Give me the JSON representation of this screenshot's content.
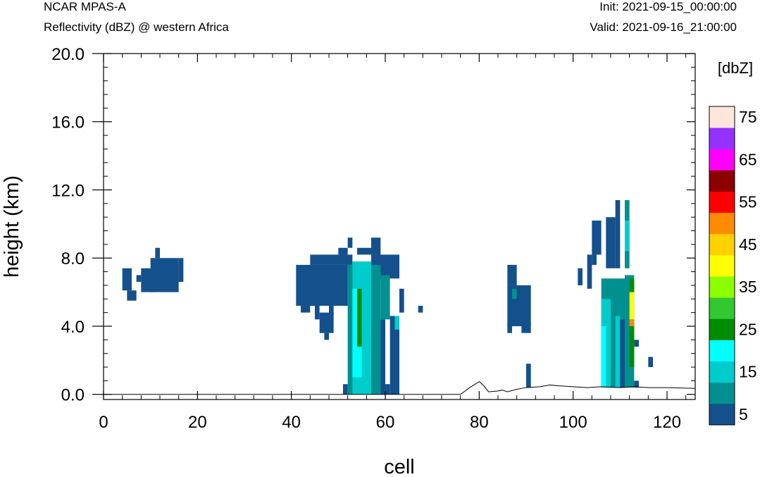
{
  "header": {
    "left_1": "NCAR MPAS-A",
    "left_2": "Reflectivity (dBZ) @ western Africa",
    "right_1": "Init: 2021-09-15_00:00:00",
    "right_2": "Valid: 2021-09-16_21:00:00"
  },
  "chart_data": {
    "type": "heatmap",
    "title": "Reflectivity (dBZ) @ western Africa",
    "xlabel": "cell",
    "ylabel": "height (km)",
    "xlim": [
      0,
      126
    ],
    "ylim": [
      -0.3,
      20
    ],
    "x_ticks": [
      "0",
      "20",
      "40",
      "60",
      "80",
      "100",
      "120"
    ],
    "y_ticks": [
      "0.0",
      "4.0",
      "8.0",
      "12.0",
      "16.0",
      "20.0"
    ],
    "colorbar": {
      "label": "[dbZ]",
      "tick_labels": [
        "5",
        "15",
        "25",
        "35",
        "45",
        "55",
        "65",
        "75"
      ],
      "levels": [
        5,
        10,
        15,
        20,
        25,
        30,
        35,
        40,
        45,
        50,
        55,
        60,
        65,
        70,
        75
      ],
      "colors": [
        "#14508c",
        "#009090",
        "#00cccc",
        "#00ffff",
        "#008c00",
        "#32c832",
        "#8cff00",
        "#ffff00",
        "#ffd200",
        "#ff8c00",
        "#ff0000",
        "#8c0000",
        "#ff00ff",
        "#9632ff",
        "#ffe6dc"
      ]
    },
    "terrain": [
      [
        0,
        0.0
      ],
      [
        76,
        0.0
      ],
      [
        78,
        0.4
      ],
      [
        80,
        0.75
      ],
      [
        81,
        0.5
      ],
      [
        82,
        0.15
      ],
      [
        84,
        0.2
      ],
      [
        85,
        0.25
      ],
      [
        86,
        0.15
      ],
      [
        88,
        0.3
      ],
      [
        90,
        0.4
      ],
      [
        93,
        0.45
      ],
      [
        95,
        0.55
      ],
      [
        97,
        0.5
      ],
      [
        100,
        0.45
      ],
      [
        103,
        0.4
      ],
      [
        106,
        0.45
      ],
      [
        110,
        0.4
      ],
      [
        113,
        0.45
      ],
      [
        116,
        0.4
      ],
      [
        120,
        0.4
      ],
      [
        126,
        0.35
      ]
    ],
    "cells": [
      {
        "x": [
          4,
          6
        ],
        "z": [
          6.1,
          7.4
        ],
        "dbz": 5
      },
      {
        "x": [
          5,
          7
        ],
        "z": [
          5.5,
          6.1
        ],
        "dbz": 5
      },
      {
        "x": [
          7,
          8
        ],
        "z": [
          6.6,
          7.0
        ],
        "dbz": 5
      },
      {
        "x": [
          8,
          11
        ],
        "z": [
          6.0,
          7.4
        ],
        "dbz": 5
      },
      {
        "x": [
          10,
          16
        ],
        "z": [
          6.0,
          8.0
        ],
        "dbz": 5
      },
      {
        "x": [
          11,
          12
        ],
        "z": [
          8.0,
          8.6
        ],
        "dbz": 5
      },
      {
        "x": [
          16,
          17
        ],
        "z": [
          6.6,
          8.0
        ],
        "dbz": 5
      },
      {
        "x": [
          41,
          52
        ],
        "z": [
          5.2,
          7.6
        ],
        "dbz": 5
      },
      {
        "x": [
          44,
          53
        ],
        "z": [
          7.6,
          8.2
        ],
        "dbz": 5
      },
      {
        "x": [
          50,
          52
        ],
        "z": [
          8.2,
          8.6
        ],
        "dbz": 5
      },
      {
        "x": [
          52,
          53
        ],
        "z": [
          8.6,
          9.2
        ],
        "dbz": 5
      },
      {
        "x": [
          54,
          57
        ],
        "z": [
          8.2,
          8.6
        ],
        "dbz": 5
      },
      {
        "x": [
          57,
          59
        ],
        "z": [
          8.2,
          9.2
        ],
        "dbz": 5
      },
      {
        "x": [
          57,
          63
        ],
        "z": [
          6.8,
          8.2
        ],
        "dbz": 5
      },
      {
        "x": [
          63,
          64
        ],
        "z": [
          4.8,
          6.2
        ],
        "dbz": 5
      },
      {
        "x": [
          67,
          68
        ],
        "z": [
          4.8,
          5.2
        ],
        "dbz": 5
      },
      {
        "x": [
          42,
          44
        ],
        "z": [
          4.8,
          5.2
        ],
        "dbz": 5
      },
      {
        "x": [
          45,
          46
        ],
        "z": [
          4.4,
          5.2
        ],
        "dbz": 5
      },
      {
        "x": [
          46,
          49
        ],
        "z": [
          3.6,
          4.8
        ],
        "dbz": 5
      },
      {
        "x": [
          48,
          49
        ],
        "z": [
          4.6,
          5.2
        ],
        "dbz": 5
      },
      {
        "x": [
          47,
          48
        ],
        "z": [
          3.2,
          3.6
        ],
        "dbz": 5
      },
      {
        "x": [
          52,
          59
        ],
        "z": [
          0.0,
          7.6
        ],
        "dbz": 10
      },
      {
        "x": [
          51,
          52
        ],
        "z": [
          0.0,
          0.6
        ],
        "dbz": 5
      },
      {
        "x": [
          53,
          57
        ],
        "z": [
          0.0,
          7.8
        ],
        "dbz": 15
      },
      {
        "x": [
          53,
          55
        ],
        "z": [
          1.0,
          6.2
        ],
        "dbz": 20
      },
      {
        "x": [
          54,
          55
        ],
        "z": [
          2.8,
          6.2
        ],
        "dbz": 25
      },
      {
        "x": [
          57,
          59
        ],
        "z": [
          0.0,
          4.4
        ],
        "dbz": 10
      },
      {
        "x": [
          59,
          61
        ],
        "z": [
          4.4,
          7.0
        ],
        "dbz": 10
      },
      {
        "x": [
          59,
          60
        ],
        "z": [
          0.0,
          4.4
        ],
        "dbz": 5
      },
      {
        "x": [
          60,
          61
        ],
        "z": [
          0.0,
          0.6
        ],
        "dbz": 5
      },
      {
        "x": [
          61,
          63
        ],
        "z": [
          0.0,
          4.6
        ],
        "dbz": 5
      },
      {
        "x": [
          62,
          63
        ],
        "z": [
          3.8,
          4.6
        ],
        "dbz": 15
      },
      {
        "x": [
          86,
          91
        ],
        "z": [
          4.0,
          6.4
        ],
        "dbz": 5
      },
      {
        "x": [
          86,
          88
        ],
        "z": [
          6.4,
          7.6
        ],
        "dbz": 5
      },
      {
        "x": [
          86,
          87
        ],
        "z": [
          3.6,
          4.2
        ],
        "dbz": 5
      },
      {
        "x": [
          87,
          88
        ],
        "z": [
          5.6,
          6.2
        ],
        "dbz": 10
      },
      {
        "x": [
          89,
          91
        ],
        "z": [
          3.6,
          4.2
        ],
        "dbz": 5
      },
      {
        "x": [
          90,
          91
        ],
        "z": [
          0.4,
          1.8
        ],
        "dbz": 5
      },
      {
        "x": [
          101,
          102
        ],
        "z": [
          6.4,
          7.4
        ],
        "dbz": 5
      },
      {
        "x": [
          103,
          104
        ],
        "z": [
          6.2,
          8.2
        ],
        "dbz": 5
      },
      {
        "x": [
          104,
          106
        ],
        "z": [
          8.2,
          10.2
        ],
        "dbz": 5
      },
      {
        "x": [
          104,
          105
        ],
        "z": [
          7.6,
          8.2
        ],
        "dbz": 5
      },
      {
        "x": [
          106,
          111
        ],
        "z": [
          0.4,
          6.8
        ],
        "dbz": 10
      },
      {
        "x": [
          106,
          108
        ],
        "z": [
          0.4,
          5.6
        ],
        "dbz": 15
      },
      {
        "x": [
          106,
          107
        ],
        "z": [
          0.4,
          4.0
        ],
        "dbz": 20
      },
      {
        "x": [
          107,
          109
        ],
        "z": [
          7.4,
          10.4
        ],
        "dbz": 5
      },
      {
        "x": [
          109,
          110
        ],
        "z": [
          7.4,
          11.4
        ],
        "dbz": 5
      },
      {
        "x": [
          108,
          109
        ],
        "z": [
          0.4,
          4.6
        ],
        "dbz": 10
      },
      {
        "x": [
          109,
          110
        ],
        "z": [
          0.4,
          4.6
        ],
        "dbz": 15
      },
      {
        "x": [
          110,
          111
        ],
        "z": [
          0.4,
          4.4
        ],
        "dbz": 5
      },
      {
        "x": [
          111,
          112
        ],
        "z": [
          7.4,
          11.4
        ],
        "dbz": 10
      },
      {
        "x": [
          111,
          112
        ],
        "z": [
          8.4,
          10.2
        ],
        "dbz": 15
      },
      {
        "x": [
          111,
          113
        ],
        "z": [
          0.4,
          7.0
        ],
        "dbz": 10
      },
      {
        "x": [
          112,
          113
        ],
        "z": [
          1.6,
          6.8
        ],
        "dbz": 25
      },
      {
        "x": [
          112,
          113
        ],
        "z": [
          4.4,
          6.0
        ],
        "dbz": 40
      },
      {
        "x": [
          112,
          113
        ],
        "z": [
          4.0,
          4.4
        ],
        "dbz": 50
      },
      {
        "x": [
          113,
          114
        ],
        "z": [
          2.8,
          3.2
        ],
        "dbz": 5
      },
      {
        "x": [
          113,
          114
        ],
        "z": [
          0.4,
          0.8
        ],
        "dbz": 5
      },
      {
        "x": [
          116,
          117
        ],
        "z": [
          1.6,
          2.2
        ],
        "dbz": 5
      }
    ]
  }
}
